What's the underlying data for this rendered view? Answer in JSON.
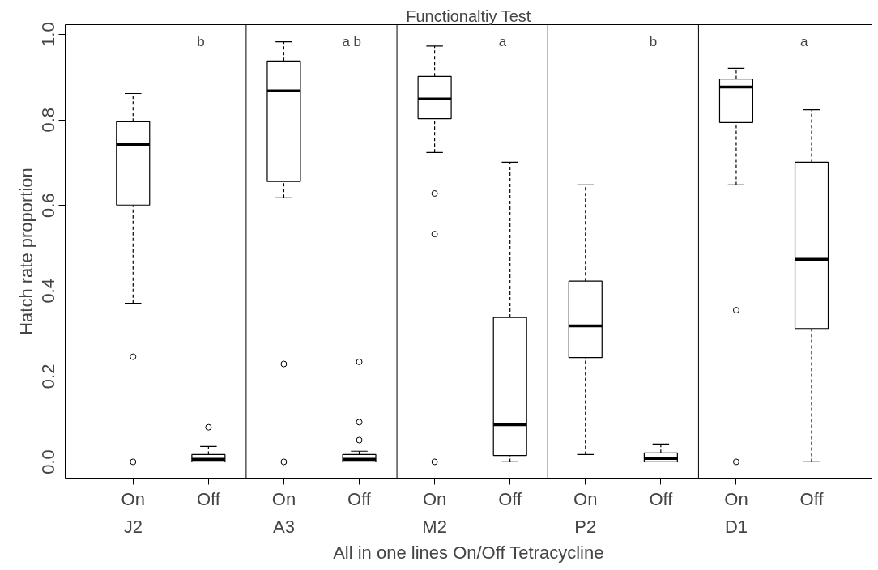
{
  "chart_data": {
    "type": "box",
    "title": "Functionaltiy Test",
    "xlabel": "All in one lines On/Off Tetracycline",
    "ylabel": "Hatch rate proportion",
    "categories": [
      "On",
      "Off",
      "On",
      "Off",
      "On",
      "Off",
      "On",
      "Off",
      "On",
      "Off"
    ],
    "boxes": [
      {
        "low": 0.371,
        "q1": 0.601,
        "median": 0.743,
        "q3": 0.796,
        "high": 0.862,
        "outliers": [
          0.246,
          0.0
        ]
      },
      {
        "low": 0.0,
        "q1": 0.0,
        "median": 0.006,
        "q3": 0.017,
        "high": 0.036,
        "outliers": [
          0.081
        ]
      },
      {
        "low": 0.618,
        "q1": 0.656,
        "median": 0.868,
        "q3": 0.938,
        "high": 0.983,
        "outliers": [
          0.229,
          0.0
        ]
      },
      {
        "low": 0.0,
        "q1": 0.0,
        "median": 0.006,
        "q3": 0.017,
        "high": 0.025,
        "outliers": [
          0.234,
          0.093,
          0.051
        ]
      },
      {
        "low": 0.724,
        "q1": 0.803,
        "median": 0.849,
        "q3": 0.902,
        "high": 0.973,
        "outliers": [
          0.628,
          0.533,
          0.0
        ]
      },
      {
        "low": 0.0,
        "q1": 0.015,
        "median": 0.087,
        "q3": 0.338,
        "high": 0.701
      },
      {
        "low": 0.017,
        "q1": 0.244,
        "median": 0.318,
        "q3": 0.423,
        "high": 0.648
      },
      {
        "low": 0.0,
        "q1": 0.0,
        "median": 0.008,
        "q3": 0.021,
        "high": 0.042
      },
      {
        "low": 0.648,
        "q1": 0.794,
        "median": 0.877,
        "q3": 0.896,
        "high": 0.921,
        "outliers": [
          0.355,
          0.0
        ]
      },
      {
        "low": 0.0,
        "q1": 0.312,
        "median": 0.474,
        "q3": 0.701,
        "high": 0.824
      }
    ],
    "annotations": [
      "b",
      "a b",
      "a",
      "b",
      "a",
      "J2",
      "A3",
      "M2",
      "P2",
      "D1"
    ],
    "ylim": [
      -0.038,
      1.023
    ],
    "yticks": [
      {
        "value": 0,
        "label": "0.0"
      },
      {
        "value": 0.2,
        "label": "0.2"
      },
      {
        "value": 0.4,
        "label": "0.4"
      },
      {
        "value": 0.6,
        "label": "0.6"
      },
      {
        "value": 0.8,
        "label": "0.8"
      },
      {
        "value": 1.0,
        "label": "1.0"
      }
    ],
    "grid": false
  }
}
